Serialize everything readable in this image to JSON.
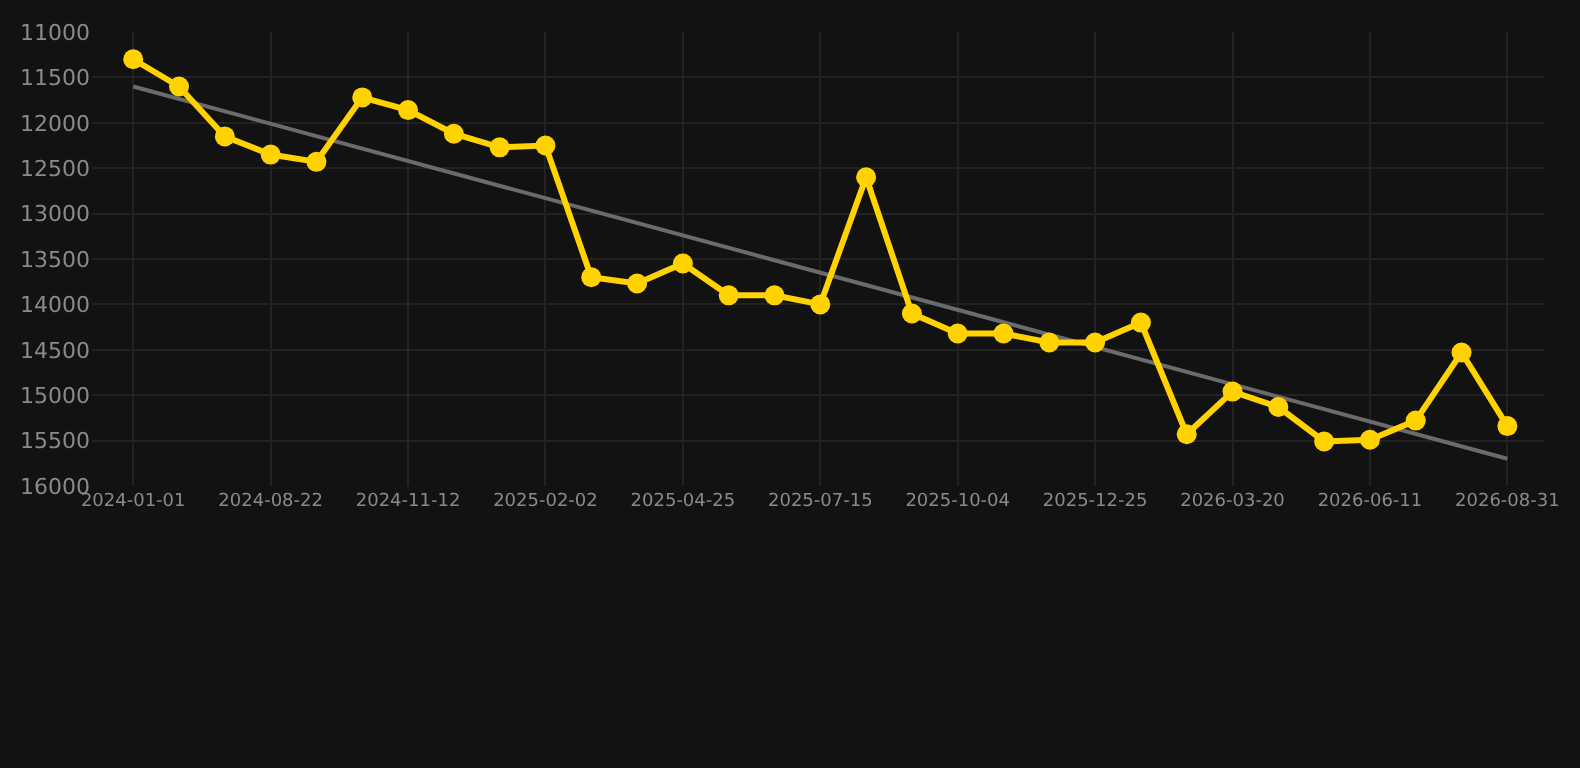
{
  "chart_data": {
    "type": "line",
    "categories": [
      "2024-01-01",
      null,
      null,
      "2024-08-22",
      null,
      null,
      "2024-11-12",
      null,
      null,
      "2025-02-02",
      null,
      null,
      "2025-04-25",
      null,
      null,
      "2025-07-15",
      null,
      null,
      "2025-10-04",
      null,
      null,
      "2025-12-25",
      null,
      null,
      "2026-03-20",
      null,
      null,
      "2026-06-11",
      null,
      null,
      "2026-08-31"
    ],
    "series": [
      {
        "color": "#ffd200",
        "marker": "circle",
        "values": [
          11300,
          11600,
          12150,
          12350,
          12430,
          11720,
          11860,
          12120,
          12270,
          12250,
          13700,
          13770,
          13550,
          13900,
          13900,
          14000,
          12600,
          14100,
          14320,
          14320,
          14420,
          14420,
          14200,
          15430,
          14960,
          15130,
          15510,
          15490,
          15280,
          14530,
          15340
        ]
      },
      {
        "type": "line",
        "color": "#6b6b6b",
        "marker": "none",
        "values": [
          11600,
          null,
          null,
          null,
          null,
          null,
          null,
          null,
          null,
          null,
          null,
          null,
          null,
          null,
          null,
          null,
          null,
          null,
          null,
          null,
          null,
          null,
          null,
          null,
          null,
          null,
          null,
          null,
          null,
          null,
          15700
        ]
      }
    ],
    "ylim": [
      16000,
      11000
    ],
    "yticks": [
      11000,
      11500,
      12000,
      12500,
      13000,
      13500,
      14000,
      14500,
      15000,
      15500,
      16000
    ],
    "grid": true
  }
}
